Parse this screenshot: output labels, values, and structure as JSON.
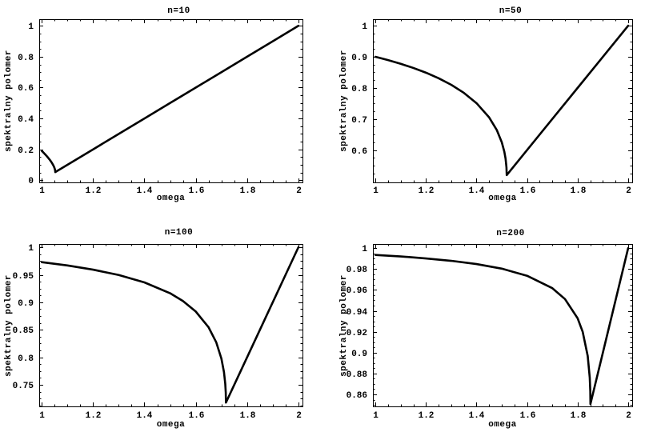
{
  "figure": {
    "background": "#ffffff",
    "text_color": "#000000",
    "curve_color": "#000000",
    "description": "2x2 grid of SOR spectral radius vs relaxation parameter plots"
  },
  "chart_data": [
    {
      "type": "line",
      "title": "n=10",
      "xlabel": "omega",
      "ylabel": "spektralny polomer",
      "xlim": [
        0.99,
        2.016
      ],
      "ylim": [
        -0.014,
        1.043
      ],
      "xticks": [
        1,
        1.2,
        1.4,
        1.6,
        1.8,
        2
      ],
      "xtick_labels": [
        "1",
        "1.2",
        "1.4",
        "1.6",
        "1.8",
        "2"
      ],
      "yticks": [
        0,
        0.2,
        0.4,
        0.6,
        0.8,
        1
      ],
      "ytick_labels": [
        "0",
        "0.2",
        "0.4",
        "0.6",
        "0.8",
        "1"
      ],
      "minor_tick_divisions": 4,
      "grid": false,
      "frame": true,
      "series": [
        {
          "name": "spektralny polomer, n=10",
          "color": "#000000",
          "points": [
            [
              1,
              0.19
            ],
            [
              1.005,
              0.1817
            ],
            [
              1.01,
              0.1732
            ],
            [
              1.015,
              0.1644
            ],
            [
              1.02,
              0.1551
            ],
            [
              1.025,
              0.1453
            ],
            [
              1.03,
              0.1349
            ],
            [
              1.035,
              0.1236
            ],
            [
              1.04,
              0.1111
            ],
            [
              1.045,
              0.0965
            ],
            [
              1.048,
              0.0858
            ],
            [
              1.05,
              0.077
            ],
            [
              1.0515,
              0.0682
            ],
            [
              1.0524,
              0.0594
            ],
            [
              1.0526,
              0.0526
            ],
            [
              1.1,
              0.1
            ],
            [
              1.2,
              0.2
            ],
            [
              1.3,
              0.3
            ],
            [
              1.4,
              0.4
            ],
            [
              1.5,
              0.5
            ],
            [
              1.6,
              0.6
            ],
            [
              1.7,
              0.7
            ],
            [
              1.8,
              0.8
            ],
            [
              1.9,
              0.9
            ],
            [
              2,
              1
            ]
          ]
        }
      ]
    },
    {
      "type": "line",
      "title": "n=50",
      "xlabel": "omega",
      "ylabel": "spektralny polomer",
      "xlim": [
        0.99,
        2.016
      ],
      "ylim": [
        0.496,
        1.021
      ],
      "xticks": [
        1,
        1.2,
        1.4,
        1.6,
        1.8,
        2
      ],
      "xtick_labels": [
        "1",
        "1.2",
        "1.4",
        "1.6",
        "1.8",
        "2"
      ],
      "yticks": [
        0.6,
        0.7,
        0.8,
        0.9,
        1
      ],
      "ytick_labels": [
        "0.6",
        "0.7",
        "0.8",
        "0.9",
        "1"
      ],
      "minor_tick_divisions": 4,
      "grid": false,
      "frame": true,
      "series": [
        {
          "name": "spektralny polomer, n=50",
          "color": "#000000",
          "points": [
            [
              1,
              0.9
            ],
            [
              1.02,
              0.8959
            ],
            [
              1.05,
              0.8894
            ],
            [
              1.1,
              0.8776
            ],
            [
              1.15,
              0.8642
            ],
            [
              1.2,
              0.8489
            ],
            [
              1.25,
              0.831
            ],
            [
              1.3,
              0.8099
            ],
            [
              1.35,
              0.784
            ],
            [
              1.4,
              0.7509
            ],
            [
              1.45,
              0.705
            ],
            [
              1.48,
              0.6648
            ],
            [
              1.5,
              0.625
            ],
            [
              1.51,
              0.5948
            ],
            [
              1.515,
              0.5721
            ],
            [
              1.5185,
              0.5447
            ],
            [
              1.5195,
              0.5195
            ],
            [
              1.6,
              0.6
            ],
            [
              1.7,
              0.7
            ],
            [
              1.8,
              0.8
            ],
            [
              1.9,
              0.9
            ],
            [
              2,
              1
            ]
          ]
        }
      ]
    },
    {
      "type": "line",
      "title": "n=100",
      "xlabel": "omega",
      "ylabel": "spektralny polomer",
      "xlim": [
        0.99,
        2.016
      ],
      "ylim": [
        0.7108,
        1.006
      ],
      "xticks": [
        1,
        1.2,
        1.4,
        1.6,
        1.8,
        2
      ],
      "xtick_labels": [
        "1",
        "1.2",
        "1.4",
        "1.6",
        "1.8",
        "2"
      ],
      "yticks": [
        0.75,
        0.8,
        0.85,
        0.9,
        0.95,
        1
      ],
      "ytick_labels": [
        "0.75",
        "0.8",
        "0.85",
        "0.9",
        "0.95",
        "1"
      ],
      "minor_tick_divisions": 4,
      "grid": false,
      "frame": true,
      "series": [
        {
          "name": "spektralny polomer, n=100",
          "color": "#000000",
          "points": [
            [
              1,
              0.973
            ],
            [
              1.1,
              0.967
            ],
            [
              1.2,
              0.9594
            ],
            [
              1.3,
              0.9496
            ],
            [
              1.4,
              0.9362
            ],
            [
              1.5,
              0.9165
            ],
            [
              1.55,
              0.9024
            ],
            [
              1.6,
              0.8833
            ],
            [
              1.65,
              0.8546
            ],
            [
              1.68,
              0.8272
            ],
            [
              1.7,
              0.7977
            ],
            [
              1.71,
              0.7731
            ],
            [
              1.715,
              0.7519
            ],
            [
              1.717,
              0.7361
            ],
            [
              1.7177,
              0.7177
            ],
            [
              1.75,
              0.75
            ],
            [
              1.8,
              0.8
            ],
            [
              1.85,
              0.85
            ],
            [
              1.9,
              0.9
            ],
            [
              1.95,
              0.95
            ],
            [
              2,
              1
            ]
          ]
        }
      ]
    },
    {
      "type": "line",
      "title": "n=200",
      "xlabel": "omega",
      "ylabel": "spektralny polomer",
      "xlim": [
        0.99,
        2.016
      ],
      "ylim": [
        0.8485,
        1.004
      ],
      "xticks": [
        1,
        1.2,
        1.4,
        1.6,
        1.8,
        2
      ],
      "xtick_labels": [
        "1",
        "1.2",
        "1.4",
        "1.6",
        "1.8",
        "2"
      ],
      "yticks": [
        0.86,
        0.88,
        0.9,
        0.92,
        0.94,
        0.96,
        0.98,
        1
      ],
      "ytick_labels": [
        "0.86",
        "0.88",
        "0.9",
        "0.92",
        "0.94",
        "0.96",
        "0.98",
        "1"
      ],
      "minor_tick_divisions": 4,
      "grid": false,
      "frame": true,
      "series": [
        {
          "name": "spektralny polomer, n=200",
          "color": "#000000",
          "points": [
            [
              1,
              0.9935
            ],
            [
              1.1,
              0.9921
            ],
            [
              1.2,
              0.9902
            ],
            [
              1.3,
              0.9879
            ],
            [
              1.4,
              0.9848
            ],
            [
              1.5,
              0.9804
            ],
            [
              1.6,
              0.9736
            ],
            [
              1.7,
              0.9617
            ],
            [
              1.75,
              0.9513
            ],
            [
              1.8,
              0.9329
            ],
            [
              1.82,
              0.92
            ],
            [
              1.84,
              0.8968
            ],
            [
              1.848,
              0.8762
            ],
            [
              1.8502,
              0.863
            ],
            [
              1.8508,
              0.8508
            ],
            [
              1.9,
              0.9
            ],
            [
              1.95,
              0.95
            ],
            [
              2,
              1
            ]
          ]
        }
      ]
    }
  ]
}
